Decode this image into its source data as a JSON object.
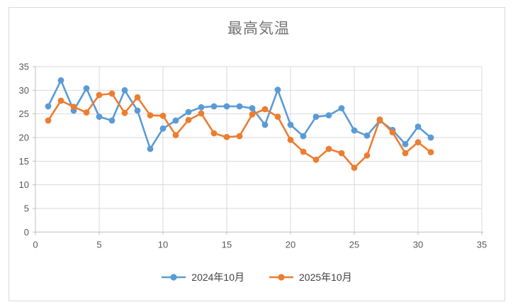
{
  "chart_data": {
    "type": "line",
    "title": "最高気温",
    "x_label": "",
    "y_label": "",
    "x": [
      1,
      2,
      3,
      4,
      5,
      6,
      7,
      8,
      9,
      10,
      11,
      12,
      13,
      14,
      15,
      16,
      17,
      18,
      19,
      20,
      21,
      22,
      23,
      24,
      25,
      26,
      27,
      28,
      29,
      30,
      31
    ],
    "series": [
      {
        "name": "2024年10月",
        "color": "#5B9BD5",
        "values": [
          26.6,
          32.1,
          25.7,
          30.4,
          24.4,
          23.6,
          30.0,
          25.7,
          17.6,
          21.9,
          23.6,
          25.4,
          26.4,
          26.6,
          26.6,
          26.6,
          26.2,
          22.7,
          30.1,
          22.7,
          20.3,
          24.4,
          24.7,
          26.2,
          21.5,
          20.4,
          23.6,
          21.6,
          18.6,
          22.3,
          20.0
        ]
      },
      {
        "name": "2025年10月",
        "color": "#ED7D31",
        "values": [
          23.6,
          27.8,
          26.5,
          25.3,
          29.0,
          29.3,
          25.2,
          28.5,
          24.7,
          24.6,
          20.5,
          23.7,
          25.1,
          20.9,
          20.1,
          20.3,
          24.9,
          26.0,
          24.4,
          19.5,
          17.0,
          15.3,
          17.6,
          16.7,
          13.6,
          16.2,
          23.8,
          21.1,
          16.7,
          19.0,
          16.9
        ]
      }
    ],
    "xlim": [
      0,
      35
    ],
    "ylim": [
      0,
      35
    ],
    "x_ticks": [
      0,
      5,
      10,
      15,
      20,
      25,
      30,
      35
    ],
    "y_ticks": [
      0,
      5,
      10,
      15,
      20,
      25,
      30,
      35
    ],
    "grid": true,
    "legend_position": "bottom"
  },
  "colors": {
    "gridline": "#d9d9d9",
    "axis_line": "#bfbfbf",
    "tick_label": "#595959",
    "title": "#737373",
    "legend_text": "#404040"
  }
}
